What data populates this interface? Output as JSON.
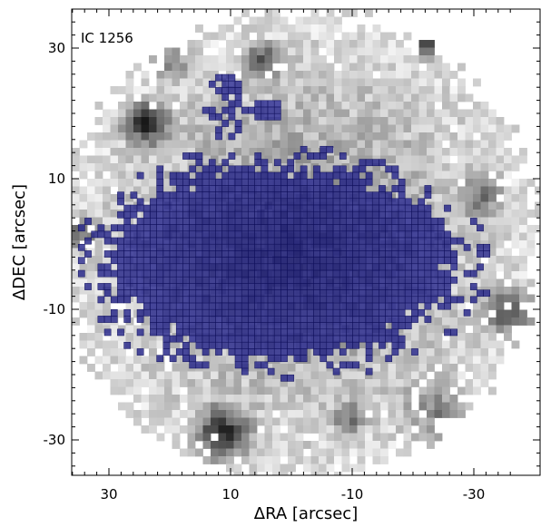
{
  "figure": {
    "label": "IC 1256",
    "xlabel": "ΔRA [arcsec]",
    "ylabel": "ΔDEC [arcsec]",
    "xlim": [
      40,
      -37
    ],
    "ylim": [
      -35,
      40
    ],
    "x_ticks": [
      {
        "value": 30,
        "label": "30"
      },
      {
        "value": 10,
        "label": "10"
      },
      {
        "value": -10,
        "label": "-10"
      },
      {
        "value": -30,
        "label": "-30"
      }
    ],
    "y_ticks": [
      {
        "value": 30,
        "label": "30"
      },
      {
        "value": 10,
        "label": "10"
      },
      {
        "value": -10,
        "label": "-10"
      },
      {
        "value": -30,
        "label": "-30"
      }
    ],
    "x_minor_step": 2,
    "y_minor_step": 2,
    "overlay_color": "#1a1aa0",
    "overlay_edge_color": "#10105a",
    "background_color": "#ffffff"
  }
}
